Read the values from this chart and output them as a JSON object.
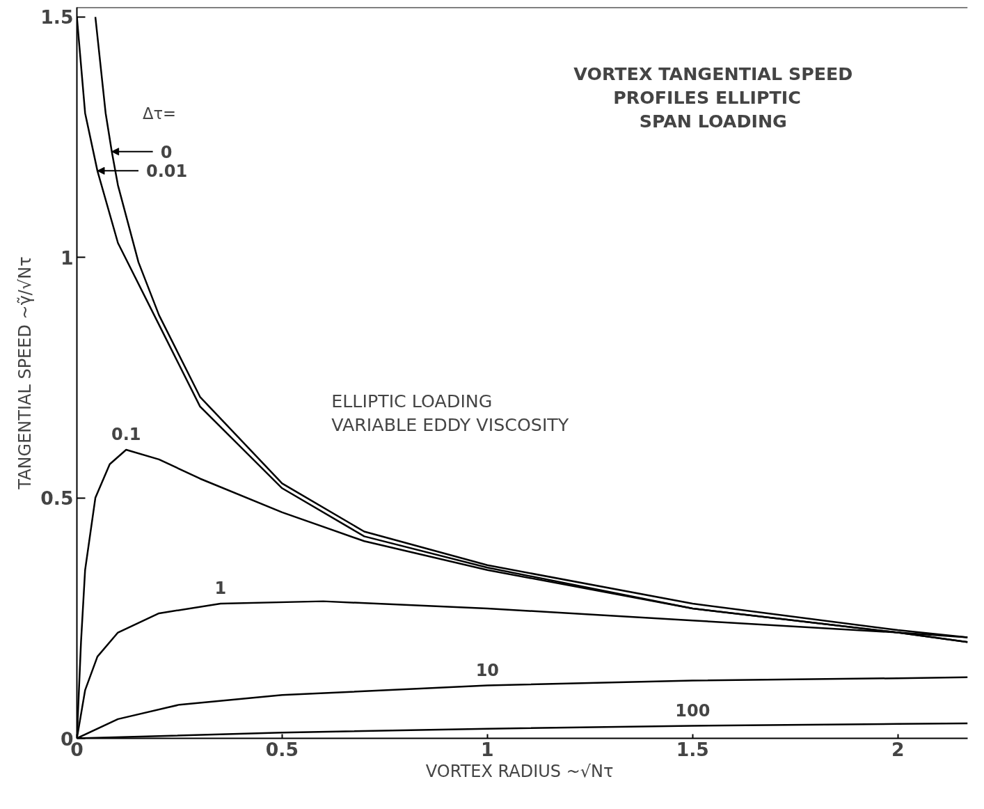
{
  "chart_data": {
    "type": "line",
    "title": "VORTEX TANGENTIAL SPEED\nPROFILES   ELLIPTIC\nSPAN LOADING",
    "subtitle": "ELLIPTIC LOADING\nVARIABLE EDDY VISCOSITY",
    "xlabel": "VORTEX RADIUS  ~√Nτ",
    "ylabel": "TANGENTIAL SPEED ~γ̃/√Nτ",
    "legend_title": "Δτ=",
    "xlim": [
      0,
      2.17
    ],
    "ylim": [
      0,
      1.52
    ],
    "xticks": [
      0,
      0.5,
      1,
      1.5,
      2
    ],
    "yticks": [
      0,
      0.5,
      1,
      1.5
    ],
    "grid": false,
    "legend": false,
    "marker": "none",
    "line_style": "solid",
    "annotations": [
      {
        "text": "0",
        "x": 0.085,
        "y": 1.22
      },
      {
        "text": "0.01",
        "x": 0.05,
        "y": 1.18
      },
      {
        "text": "0.1",
        "x": 0.12,
        "y": 0.6
      },
      {
        "text": "1",
        "x": 0.35,
        "y": 0.28
      },
      {
        "text": "10",
        "x": 1,
        "y": 0.11
      },
      {
        "text": "100",
        "x": 1.5,
        "y": 0.026
      }
    ],
    "series": [
      {
        "color": "#000000",
        "x": [
          0.045,
          0.07,
          0.085,
          0.1,
          0.15,
          0.2,
          0.3,
          0.5,
          0.7,
          1,
          1.5,
          2,
          2.17
        ],
        "values": [
          1.5,
          1.3,
          1.22,
          1.15,
          0.99,
          0.88,
          0.71,
          0.53,
          0.43,
          0.36,
          0.28,
          0.225,
          0.21
        ]
      },
      {
        "color": "#000000",
        "x": [
          0.0,
          0.02,
          0.05,
          0.1,
          0.2,
          0.3,
          0.5,
          0.7,
          1,
          1.5,
          2,
          2.17
        ],
        "values": [
          1.5,
          1.3,
          1.18,
          1.03,
          0.86,
          0.69,
          0.52,
          0.42,
          0.355,
          0.27,
          0.22,
          0.2
        ]
      },
      {
        "color": "#000000",
        "x": [
          0,
          0.01,
          0.02,
          0.045,
          0.08,
          0.12,
          0.2,
          0.3,
          0.5,
          0.7,
          1,
          1.5,
          2,
          2.17
        ],
        "values": [
          0,
          0.2,
          0.35,
          0.5,
          0.57,
          0.6,
          0.58,
          0.54,
          0.47,
          0.41,
          0.35,
          0.27,
          0.22,
          0.2
        ]
      },
      {
        "color": "#000000",
        "x": [
          0,
          0.02,
          0.05,
          0.1,
          0.2,
          0.35,
          0.6,
          1,
          1.5,
          2,
          2.17
        ],
        "values": [
          0,
          0.1,
          0.17,
          0.22,
          0.26,
          0.28,
          0.285,
          0.27,
          0.245,
          0.22,
          0.21
        ]
      },
      {
        "color": "#000000",
        "x": [
          0,
          0.1,
          0.25,
          0.5,
          1,
          1.5,
          2,
          2.17
        ],
        "values": [
          0,
          0.04,
          0.07,
          0.09,
          0.11,
          0.12,
          0.125,
          0.127
        ]
      },
      {
        "color": "#000000",
        "x": [
          0,
          0.5,
          1,
          1.5,
          2,
          2.17
        ],
        "values": [
          0,
          0.012,
          0.02,
          0.026,
          0.03,
          0.031
        ]
      }
    ]
  }
}
